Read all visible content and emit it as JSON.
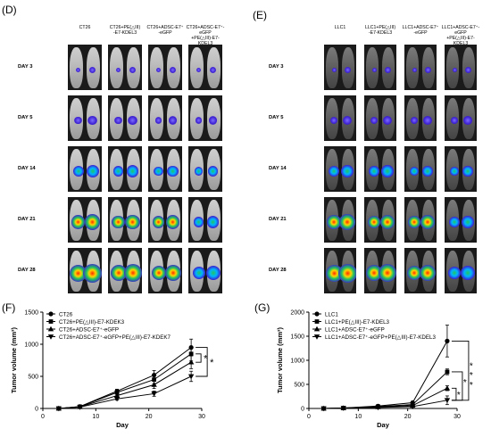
{
  "panels": {
    "D": {
      "label": "(D)",
      "columns": [
        "CT26",
        "CT26+PE(△III)\n-E7-KDEL3",
        "CT26+ADSC-E7⁺\n-eGFP",
        "CT26+ADSC-E7⁺-eGFP\n+PE(△III)-E7-KDEL3"
      ],
      "days": [
        "DAY 3",
        "DAY 5",
        "DAY 14",
        "DAY 21",
        "DAY 28"
      ]
    },
    "E": {
      "label": "(E)",
      "columns": [
        "LLC1",
        "LLC1+PE(△III)\n-E7-KDEL3",
        "LLC1+ADSC-E7⁺\n-eGFP",
        "LLC1+ADSC-E7⁺-eGFP\n+PE(△III)-E7-KDEL3"
      ],
      "days": [
        "DAY 3",
        "DAY 5",
        "DAY 14",
        "DAY 21",
        "DAY 28"
      ]
    },
    "F": {
      "label": "(F)"
    },
    "G": {
      "label": "(G)"
    }
  },
  "chart_data": [
    {
      "panel": "F",
      "type": "line",
      "xlabel": "Day",
      "ylabel": "Tumor volume (mm³)",
      "xlim": [
        0,
        30
      ],
      "ylim": [
        0,
        1500
      ],
      "xticks": [
        0,
        10,
        20,
        30
      ],
      "yticks": [
        0,
        500,
        1000,
        1500
      ],
      "grid": false,
      "legend": "top-left",
      "significance": [
        "*",
        "*"
      ],
      "series": [
        {
          "name": "CT26",
          "marker": "circle",
          "x": [
            3,
            7,
            14,
            21,
            28
          ],
          "y": [
            0,
            30,
            270,
            520,
            950
          ],
          "err": [
            0,
            8,
            30,
            70,
            130
          ]
        },
        {
          "name": "CT26+PE(△III)-E7-KDEK3",
          "marker": "square",
          "x": [
            3,
            7,
            14,
            21,
            28
          ],
          "y": [
            0,
            28,
            250,
            450,
            850
          ],
          "err": [
            0,
            8,
            30,
            60,
            110
          ]
        },
        {
          "name": "CT26+ADSC-E7⁺-eGFP",
          "marker": "triangle-up",
          "x": [
            3,
            7,
            14,
            21,
            28
          ],
          "y": [
            0,
            25,
            200,
            370,
            720
          ],
          "err": [
            0,
            6,
            25,
            60,
            100
          ]
        },
        {
          "name": "CT26+ADSC-E7⁺-eGFP+PE(△III)-E7-KDEK7",
          "marker": "triangle-down",
          "x": [
            3,
            7,
            14,
            21,
            28
          ],
          "y": [
            0,
            20,
            150,
            230,
            500
          ],
          "err": [
            0,
            5,
            20,
            40,
            80
          ]
        }
      ]
    },
    {
      "panel": "G",
      "type": "line",
      "xlabel": "Day",
      "ylabel": "Tumor volume (mm³)",
      "xlim": [
        0,
        30
      ],
      "ylim": [
        0,
        2000
      ],
      "xticks": [
        0,
        10,
        20,
        30
      ],
      "yticks": [
        0,
        500,
        1000,
        1500,
        2000
      ],
      "grid": false,
      "legend": "top-left",
      "significance": [
        "*",
        "*",
        "*",
        "*",
        "*"
      ],
      "series": [
        {
          "name": "LLC1",
          "marker": "circle",
          "x": [
            3,
            7,
            14,
            21,
            28
          ],
          "y": [
            0,
            10,
            50,
            120,
            1400
          ],
          "err": [
            0,
            3,
            10,
            25,
            330
          ]
        },
        {
          "name": "LLC1+PE(△III)-E7-KDEL3",
          "marker": "square",
          "x": [
            3,
            7,
            14,
            21,
            28
          ],
          "y": [
            0,
            10,
            40,
            80,
            760
          ],
          "err": [
            0,
            3,
            8,
            15,
            60
          ]
        },
        {
          "name": "LLC1+ADSC-E7⁺-eGFP",
          "marker": "triangle-up",
          "x": [
            3,
            7,
            14,
            21,
            28
          ],
          "y": [
            0,
            8,
            30,
            60,
            420
          ],
          "err": [
            0,
            2,
            6,
            12,
            50
          ]
        },
        {
          "name": "LLC1+ADSC-E7⁺-eGFP+PE(△III)-E7-KDEL3",
          "marker": "triangle-down",
          "x": [
            3,
            7,
            14,
            21,
            28
          ],
          "y": [
            0,
            5,
            20,
            40,
            170
          ],
          "err": [
            0,
            2,
            5,
            10,
            90
          ]
        }
      ]
    }
  ],
  "colors": {
    "plate": "#1a1a1a",
    "mouse": "#c4c4c4",
    "signal_low": "#3b1fd1",
    "signal_mid": "#22c55e",
    "signal_high": "#ff2a00"
  }
}
